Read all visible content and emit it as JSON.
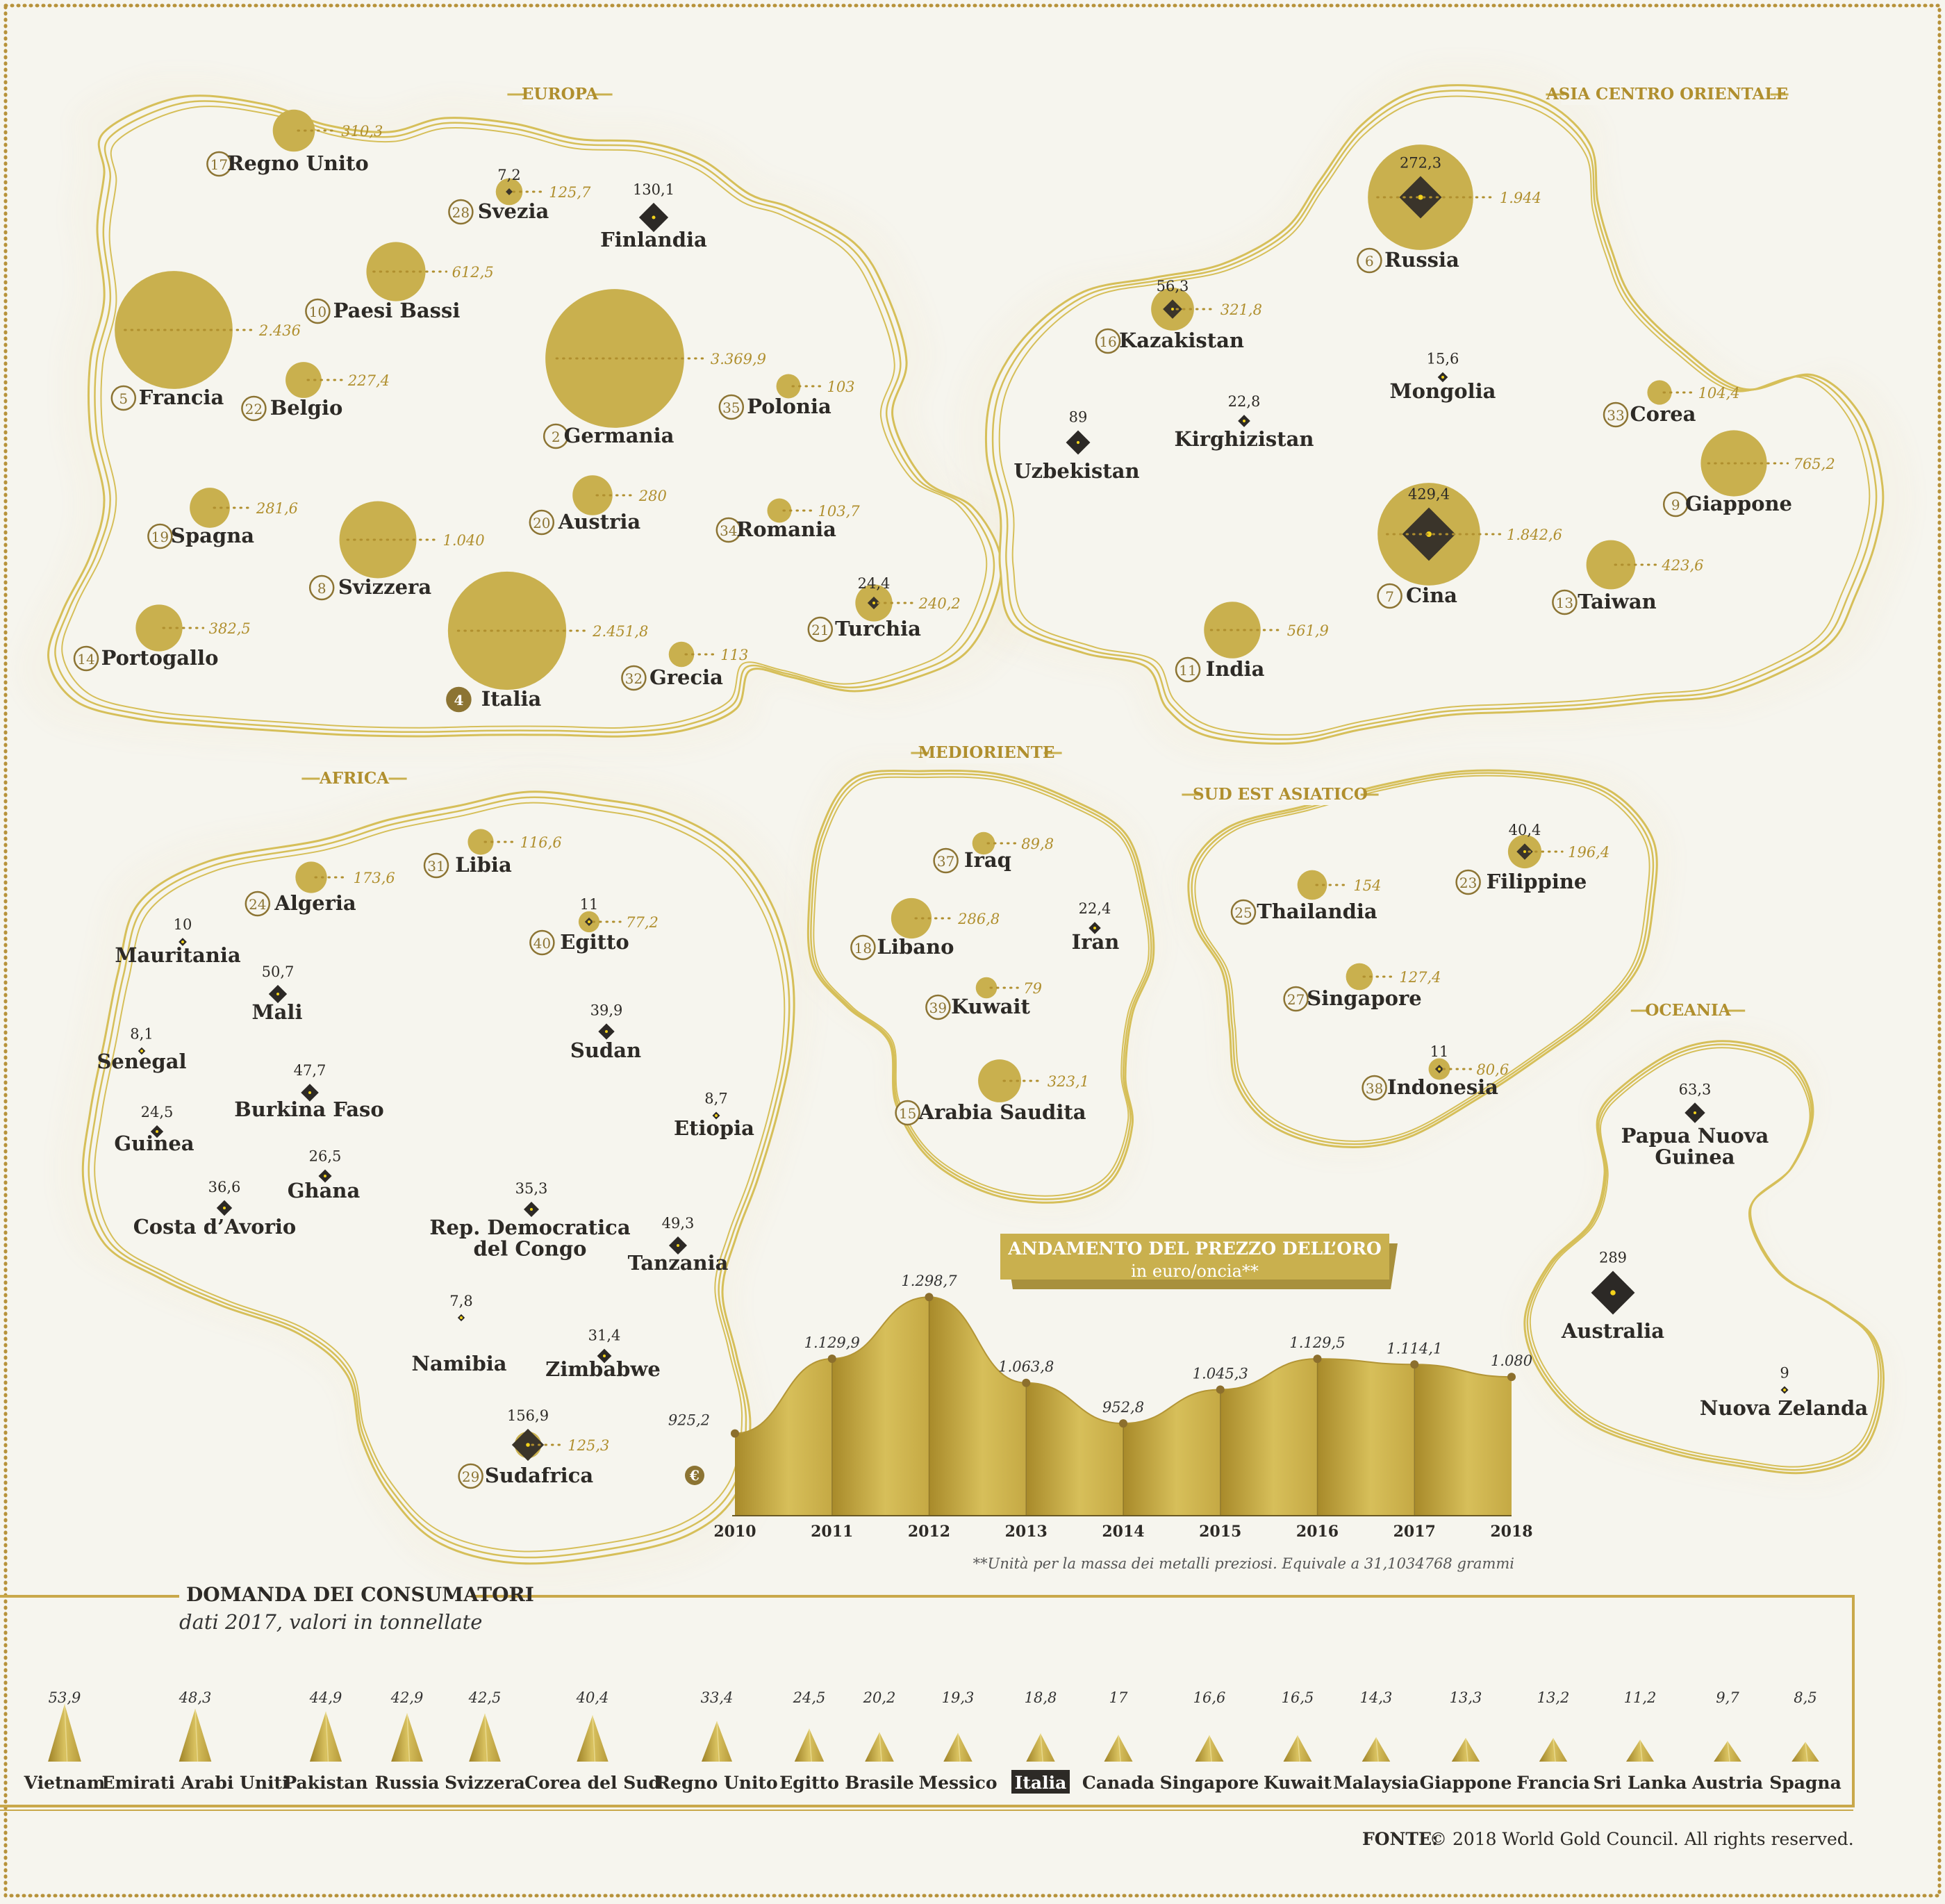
{
  "colors": {
    "gold": "#c9b04e",
    "gold_line": "#d6bf59",
    "dark": "#2c2926",
    "yellow": "#f3d21b",
    "bg": "#f6f5ee",
    "label": "#2d2a26",
    "value": "#b08f2e"
  },
  "regions": [
    {
      "id": "europa",
      "title": "EUROPA",
      "countries": [
        {
          "name": "Regno Unito",
          "rank": "17",
          "gold": "310,3"
        },
        {
          "name": "Svezia",
          "rank": "28",
          "gold": "125,7",
          "extract": "7,2"
        },
        {
          "name": "Finlandia",
          "extract": "130,1"
        },
        {
          "name": "Paesi Bassi",
          "rank": "10",
          "gold": "612,5"
        },
        {
          "name": "Francia",
          "rank": "5",
          "gold": "2.436"
        },
        {
          "name": "Belgio",
          "rank": "22",
          "gold": "227,4"
        },
        {
          "name": "Germania",
          "rank": "2",
          "gold": "3.369,9"
        },
        {
          "name": "Polonia",
          "rank": "35",
          "gold": "103"
        },
        {
          "name": "Spagna",
          "rank": "19",
          "gold": "281,6"
        },
        {
          "name": "Svizzera",
          "rank": "8",
          "gold": "1.040"
        },
        {
          "name": "Austria",
          "rank": "20",
          "gold": "280"
        },
        {
          "name": "Romania",
          "rank": "34",
          "gold": "103,7"
        },
        {
          "name": "Turchia",
          "rank": "21",
          "gold": "240,2",
          "extract": "24,4"
        },
        {
          "name": "Portogallo",
          "rank": "14",
          "gold": "382,5"
        },
        {
          "name": "Italia",
          "rank": "4",
          "gold": "2.451,8"
        },
        {
          "name": "Grecia",
          "rank": "32",
          "gold": "113"
        }
      ]
    },
    {
      "id": "asia",
      "title": "ASIA CENTRO ORIENTALE",
      "countries": [
        {
          "name": "Russia",
          "rank": "6",
          "gold": "1.944",
          "extract": "272,3"
        },
        {
          "name": "Kazakistan",
          "rank": "16",
          "gold": "321,8",
          "extract": "56,3"
        },
        {
          "name": "Mongolia",
          "extract": "15,6"
        },
        {
          "name": "Uzbekistan",
          "extract": "89"
        },
        {
          "name": "Kirghizistan",
          "extract": "22,8"
        },
        {
          "name": "Corea",
          "rank": "33",
          "gold": "104,4"
        },
        {
          "name": "Giappone",
          "rank": "9",
          "gold": "765,2"
        },
        {
          "name": "Cina",
          "rank": "7",
          "gold": "1.842,6",
          "extract": "429,4"
        },
        {
          "name": "Taiwan",
          "rank": "13",
          "gold": "423,6"
        },
        {
          "name": "India",
          "rank": "11",
          "gold": "561,9"
        }
      ]
    },
    {
      "id": "medioriente",
      "title": "MEDIORIENTE",
      "countries": [
        {
          "name": "Iraq",
          "rank": "37",
          "gold": "89,8"
        },
        {
          "name": "Libano",
          "rank": "18",
          "gold": "286,8"
        },
        {
          "name": "Iran",
          "extract": "22,4"
        },
        {
          "name": "Kuwait",
          "rank": "39",
          "gold": "79"
        },
        {
          "name": "Arabia Saudita",
          "rank": "15",
          "gold": "323,1"
        }
      ]
    },
    {
      "id": "sudest",
      "title": "SUD EST ASIATICO",
      "countries": [
        {
          "name": "Thailandia",
          "rank": "25",
          "gold": "154"
        },
        {
          "name": "Filippine",
          "rank": "23",
          "gold": "196,4",
          "extract": "40,4"
        },
        {
          "name": "Singapore",
          "rank": "27",
          "gold": "127,4"
        },
        {
          "name": "Indonesia",
          "rank": "38",
          "gold": "80,6",
          "extract": "11"
        }
      ]
    },
    {
      "id": "oceania",
      "title": "OCEANIA",
      "countries": [
        {
          "name": "Papua Nuova\nGuinea",
          "extract": "63,3"
        },
        {
          "name": "Australia",
          "extract": "289"
        },
        {
          "name": "Nuova Zelanda",
          "extract": "9"
        }
      ]
    },
    {
      "id": "africa",
      "title": "AFRICA",
      "countries": [
        {
          "name": "Libia",
          "rank": "31",
          "gold": "116,6"
        },
        {
          "name": "Algeria",
          "rank": "24",
          "gold": "173,6"
        },
        {
          "name": "Mauritania",
          "extract": "10"
        },
        {
          "name": "Egitto",
          "rank": "40",
          "gold": "77,2",
          "extract": "11"
        },
        {
          "name": "Mali",
          "extract": "50,7"
        },
        {
          "name": "Senegal",
          "extract": "8,1"
        },
        {
          "name": "Sudan",
          "extract": "39,9"
        },
        {
          "name": "Burkina Faso",
          "extract": "47,7"
        },
        {
          "name": "Etiopia",
          "extract": "8,7"
        },
        {
          "name": "Guinea",
          "extract": "24,5"
        },
        {
          "name": "Ghana",
          "extract": "26,5"
        },
        {
          "name": "Costa d’Avorio",
          "extract": "36,6"
        },
        {
          "name": "Rep. Democratica\ndel Congo",
          "extract": "35,3"
        },
        {
          "name": "Tanzania",
          "extract": "49,3"
        },
        {
          "name": "Namibia",
          "extract": "7,8"
        },
        {
          "name": "Zimbabwe",
          "extract": "31,4"
        },
        {
          "name": "Sudafrica",
          "rank": "29",
          "gold": "125,3",
          "extract": "156,9"
        }
      ]
    }
  ],
  "price_chart": {
    "title": "ANDAMENTO DEL PREZZO DELL’ORO",
    "subtitle": "in euro/oncia**",
    "currency_symbol": "€",
    "footnote": "**Unità per la massa dei metalli preziosi. Equivale a 31,1034768 grammi"
  },
  "demand": {
    "title": "DOMANDA DEI CONSUMATORI",
    "subtitle": "dati 2017, valori in tonnellate",
    "highlight": "Italia"
  },
  "source": {
    "label": "FONTE:",
    "text": "© 2018 World Gold Council. All rights reserved."
  },
  "chart_data": [
    {
      "type": "area",
      "title": "ANDAMENTO DEL PREZZO DELL’ORO",
      "subtitle": "in euro/oncia**",
      "x": [
        "2010",
        "2011",
        "2012",
        "2013",
        "2014",
        "2015",
        "2016",
        "2017",
        "2018"
      ],
      "values": [
        925.2,
        1129.9,
        1298.7,
        1063.8,
        952.8,
        1045.3,
        1129.5,
        1114.1,
        1080
      ],
      "value_labels": [
        "925,2",
        "1.129,9",
        "1.298,7",
        "1.063,8",
        "952,8",
        "1.045,3",
        "1.129,5",
        "1.114,1",
        "1.080"
      ],
      "ylim": [
        700,
        1320
      ]
    },
    {
      "type": "bar",
      "title": "DOMANDA DEI CONSUMATORI",
      "subtitle": "dati 2017, valori in tonnellate",
      "categories": [
        "Vietnam",
        "Emirati Arabi Uniti",
        "Pakistan",
        "Russia",
        "Svizzera",
        "Corea del Sud",
        "Regno Unito",
        "Egitto",
        "Brasile",
        "Messico",
        "Italia",
        "Canada",
        "Singapore",
        "Kuwait",
        "Malaysia",
        "Giappone",
        "Francia",
        "Sri Lanka",
        "Austria",
        "Spagna"
      ],
      "values": [
        53.9,
        48.3,
        44.9,
        42.9,
        42.5,
        40.4,
        33.4,
        24.5,
        20.2,
        19.3,
        18.8,
        17,
        16.6,
        16.5,
        14.3,
        13.3,
        13.2,
        11.2,
        9.7,
        8.5
      ],
      "value_labels": [
        "53,9",
        "48,3",
        "44,9",
        "42,9",
        "42,5",
        "40,4",
        "33,4",
        "24,5",
        "20,2",
        "19,3",
        "18,8",
        "17",
        "16,6",
        "16,5",
        "14,3",
        "13,3",
        "13,2",
        "11,2",
        "9,7",
        "8,5"
      ]
    }
  ]
}
